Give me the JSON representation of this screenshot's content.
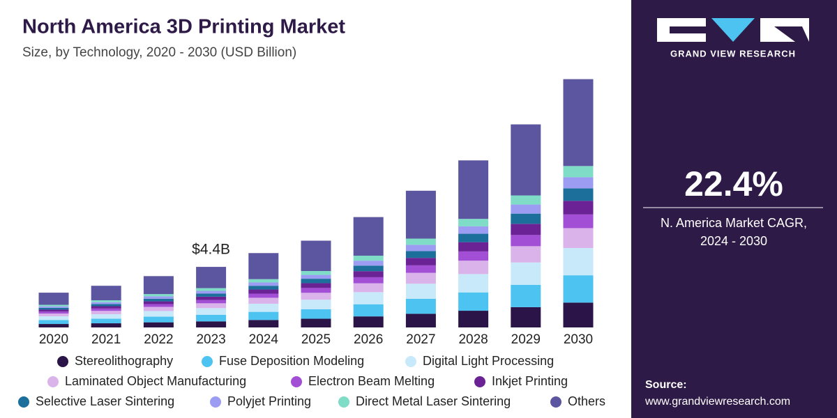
{
  "chart_data": {
    "type": "stacked_bar",
    "title": "North America 3D Printing Market",
    "subtitle": "Size, by Technology, 2020 - 2030 (USD Billion)",
    "categories": [
      "2020",
      "2021",
      "2022",
      "2023",
      "2024",
      "2025",
      "2026",
      "2027",
      "2028",
      "2029",
      "2030"
    ],
    "series": [
      {
        "name": "Stereolithography",
        "color": "#2b1447",
        "values": [
          0.25,
          0.3,
          0.37,
          0.44,
          0.54,
          0.63,
          0.8,
          0.99,
          1.21,
          1.47,
          1.8
        ]
      },
      {
        "name": "Fuse Deposition Modeling",
        "color": "#4cc3f0",
        "values": [
          0.28,
          0.33,
          0.41,
          0.48,
          0.59,
          0.69,
          0.88,
          1.09,
          1.33,
          1.62,
          1.98
        ]
      },
      {
        "name": "Digital Light Processing",
        "color": "#c7e9fa",
        "values": [
          0.28,
          0.33,
          0.41,
          0.48,
          0.59,
          0.69,
          0.88,
          1.09,
          1.33,
          1.62,
          1.98
        ]
      },
      {
        "name": "Laminated Object Manufacturing",
        "color": "#dab3ea",
        "values": [
          0.2,
          0.24,
          0.3,
          0.35,
          0.43,
          0.5,
          0.64,
          0.79,
          0.97,
          1.18,
          1.44
        ]
      },
      {
        "name": "Electron Beam Melting",
        "color": "#a24fd6",
        "values": [
          0.14,
          0.17,
          0.2,
          0.24,
          0.3,
          0.35,
          0.44,
          0.54,
          0.67,
          0.81,
          0.99
        ]
      },
      {
        "name": "Inkjet Printing",
        "color": "#6a2295",
        "values": [
          0.14,
          0.17,
          0.2,
          0.24,
          0.3,
          0.35,
          0.44,
          0.54,
          0.67,
          0.81,
          0.99
        ]
      },
      {
        "name": "Selective Laser Sintering",
        "color": "#1b6f9a",
        "values": [
          0.13,
          0.15,
          0.19,
          0.22,
          0.27,
          0.32,
          0.4,
          0.5,
          0.61,
          0.74,
          0.9
        ]
      },
      {
        "name": "Polyjet Printing",
        "color": "#9b9cf2",
        "values": [
          0.11,
          0.14,
          0.17,
          0.2,
          0.24,
          0.28,
          0.36,
          0.45,
          0.54,
          0.66,
          0.81
        ]
      },
      {
        "name": "Direct Metal Laser Sintering",
        "color": "#7fdcc6",
        "values": [
          0.11,
          0.14,
          0.17,
          0.2,
          0.24,
          0.28,
          0.36,
          0.45,
          0.54,
          0.66,
          0.81
        ]
      },
      {
        "name": "Others",
        "color": "#5b569f",
        "values": [
          0.88,
          1.05,
          1.3,
          1.54,
          1.89,
          2.2,
          2.8,
          3.47,
          4.24,
          5.15,
          6.3
        ]
      }
    ],
    "annotations": [
      {
        "x": "2023",
        "text": "$4.4B"
      }
    ]
  },
  "side_panel": {
    "brand": "GRAND VIEW RESEARCH",
    "cagr": "22.4%",
    "cagr_label": [
      "N. America Market CAGR,",
      "2024 - 2030"
    ],
    "source_label": "Source:",
    "source_url": "www.grandviewresearch.com"
  }
}
